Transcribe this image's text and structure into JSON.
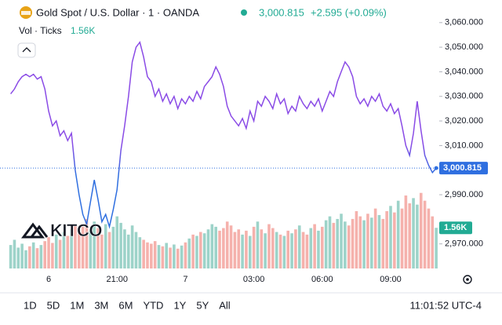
{
  "chart_data": {
    "type": "line",
    "title": "Gold Spot / U.S. Dollar · 1 · OANDA",
    "last_label": "3,000.815",
    "change_label": "+2.595 (+0.09%)",
    "categories": [
      null,
      null,
      null,
      null,
      null,
      null,
      null,
      null,
      null,
      null,
      "6",
      null,
      null,
      null,
      null,
      null,
      null,
      null,
      null,
      null,
      null,
      null,
      null,
      null,
      null,
      null,
      null,
      null,
      "21:00",
      null,
      null,
      null,
      null,
      null,
      null,
      null,
      null,
      null,
      null,
      null,
      null,
      null,
      null,
      null,
      null,
      null,
      "7",
      null,
      null,
      null,
      null,
      null,
      null,
      null,
      null,
      null,
      null,
      null,
      null,
      null,
      null,
      null,
      null,
      null,
      "03:00",
      null,
      null,
      null,
      null,
      null,
      null,
      null,
      null,
      null,
      null,
      null,
      null,
      null,
      null,
      null,
      null,
      null,
      "06:00",
      null,
      null,
      null,
      null,
      null,
      null,
      null,
      null,
      null,
      null,
      null,
      null,
      null,
      null,
      null,
      null,
      null,
      "09:00",
      null,
      null,
      null,
      null,
      null,
      null,
      null,
      null,
      null,
      null,
      null,
      null
    ],
    "series": [
      {
        "colors": [
          "#8a4be6",
          "#2f6fe0"
        ],
        "values": [
          3031,
          3033,
          3036,
          3038,
          3039,
          3038,
          3039,
          3037,
          3038,
          3033,
          3024,
          3018,
          3020,
          3014,
          3016,
          3012,
          3015,
          3000,
          2990,
          2982,
          2978,
          2987,
          2996,
          2988,
          2979,
          2982,
          2977,
          2984,
          2992,
          3008,
          3018,
          3030,
          3044,
          3050,
          3052,
          3046,
          3038,
          3036,
          3030,
          3033,
          3028,
          3031,
          3027,
          3030,
          3025,
          3029,
          3027,
          3030,
          3028,
          3032,
          3029,
          3034,
          3036,
          3038,
          3042,
          3039,
          3034,
          3026,
          3022,
          3020,
          3018,
          3021,
          3017,
          3024,
          3020,
          3028,
          3026,
          3030,
          3028,
          3025,
          3031,
          3027,
          3029,
          3023,
          3026,
          3024,
          3030,
          3027,
          3025,
          3028,
          3026,
          3029,
          3024,
          3028,
          3032,
          3030,
          3036,
          3040,
          3044,
          3042,
          3038,
          3030,
          3027,
          3029,
          3026,
          3030,
          3028,
          3031,
          3026,
          3024,
          3027,
          3023,
          3025,
          3018,
          3010,
          3006,
          3015,
          3028,
          3016,
          3006,
          3002,
          2999,
          3000.815
        ]
      },
      {
        "name": "Vol · Ticks",
        "type": "bar",
        "axis": "y2",
        "last_label": "1.56K",
        "up_color": "#8ccbbf",
        "down_color": "#f3a39d",
        "values": [
          900,
          1100,
          800,
          950,
          700,
          850,
          1000,
          780,
          900,
          1050,
          1200,
          980,
          1300,
          1100,
          1400,
          1250,
          1500,
          1700,
          1350,
          1600,
          1900,
          1450,
          1800,
          1550,
          1300,
          1700,
          1400,
          1600,
          2000,
          1750,
          1500,
          1300,
          1650,
          1400,
          1200,
          1100,
          1000,
          950,
          1050,
          900,
          850,
          980,
          800,
          920,
          760,
          880,
          1000,
          1150,
          1300,
          1250,
          1400,
          1350,
          1500,
          1700,
          1600,
          1450,
          1550,
          1800,
          1650,
          1400,
          1500,
          1300,
          1450,
          1250,
          1600,
          1800,
          1500,
          1350,
          1700,
          1550,
          1400,
          1300,
          1250,
          1450,
          1350,
          1500,
          1650,
          1400,
          1300,
          1550,
          1700,
          1450,
          1600,
          1850,
          2000,
          1750,
          1900,
          2100,
          1800,
          1650,
          1900,
          2200,
          2000,
          1850,
          2100,
          1950,
          2300,
          2050,
          1900,
          2200,
          2400,
          2150,
          2600,
          2300,
          2800,
          2500,
          2700,
          2450,
          2900,
          2600,
          2300,
          2000,
          1560
        ]
      }
    ],
    "ylim": [
      2960,
      3066
    ],
    "y2lim": [
      0,
      10000
    ],
    "yticks": [
      {
        "value": 2970,
        "label": "2,970.000"
      },
      {
        "value": 2990,
        "label": "2,990.000"
      },
      {
        "value": 3010,
        "label": "3,010.000"
      },
      {
        "value": 3020,
        "label": "3,020.000"
      },
      {
        "value": 3030,
        "label": "3,030.000"
      },
      {
        "value": 3040,
        "label": "3,040.000"
      },
      {
        "value": 3050,
        "label": "3,050.000"
      },
      {
        "value": 3060,
        "label": "3,060.000"
      }
    ],
    "watermark": "KITCO",
    "ranges": [
      "1D",
      "5D",
      "1M",
      "3M",
      "6M",
      "YTD",
      "1Y",
      "5Y",
      "All"
    ],
    "clock": "11:01:52 UTC-4"
  }
}
